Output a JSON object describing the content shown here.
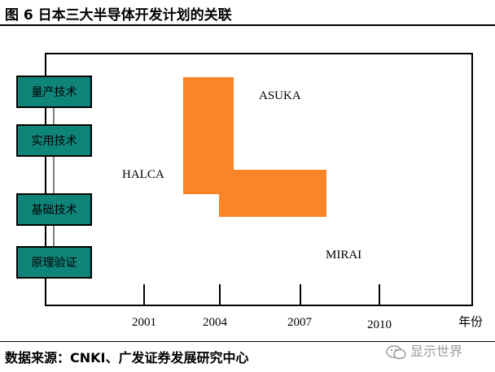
{
  "title": "图 6  日本三大半导体开发计划的关联",
  "source": "数据来源：CNKI、广发证券发展研究中心",
  "watermark": "显示世界",
  "colors": {
    "stage_box": "#0f8479",
    "project": "#fa8428",
    "frame": "#000000"
  },
  "stages": [
    "量产技术",
    "实用技术",
    "基础技术",
    "原理验证"
  ],
  "projects": [
    "ASUKA",
    "HALCA",
    "MIRAI"
  ],
  "years": [
    "2001",
    "2004",
    "2007",
    "2010"
  ],
  "axis_unit": "年份"
}
